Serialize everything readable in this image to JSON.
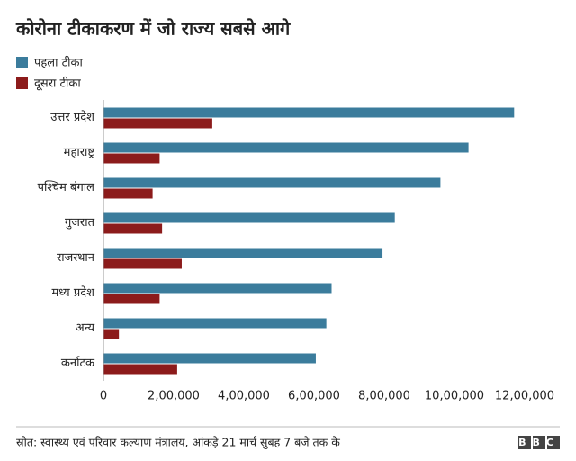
{
  "chart_data": {
    "type": "hbar",
    "title": "कोरोना टीकाकरण में जो राज्य सबसे आगे",
    "categories": [
      "उत्तर प्रदेश",
      "महाराष्ट्र",
      "पश्चिम बंगाल",
      "गुजरात",
      "राजस्थान",
      "मध्य प्रदेश",
      "अन्य",
      "कर्नाटक"
    ],
    "series": [
      {
        "name": "पहला टीका",
        "color": "#3b7c9c",
        "values": [
          1170000,
          1040000,
          960000,
          830000,
          795000,
          650000,
          635000,
          605000
        ]
      },
      {
        "name": "दूसरा टीका",
        "color": "#8c1b1b",
        "values": [
          310000,
          160000,
          140000,
          167000,
          223000,
          160000,
          44000,
          210000
        ]
      }
    ],
    "xlim": [
      0,
      1200000
    ],
    "xticks": [
      0,
      {
        "value": 200000,
        "label": "2,00,000"
      },
      {
        "value": 400000,
        "label": "4,00,000"
      },
      {
        "value": 600000,
        "label": "6,00,000"
      },
      {
        "value": 800000,
        "label": "8,00,000"
      },
      {
        "value": 1000000,
        "label": "10,00,000"
      },
      {
        "value": 1200000,
        "label": "12,00,000"
      }
    ],
    "legend": "top-left",
    "grid": false,
    "source": "स्रोत: स्वास्थ्य एवं परिवार कल्याण मंत्रालय, आंकड़े 21 मार्च सुबह 7 बजे तक के",
    "logo": "BBC"
  }
}
